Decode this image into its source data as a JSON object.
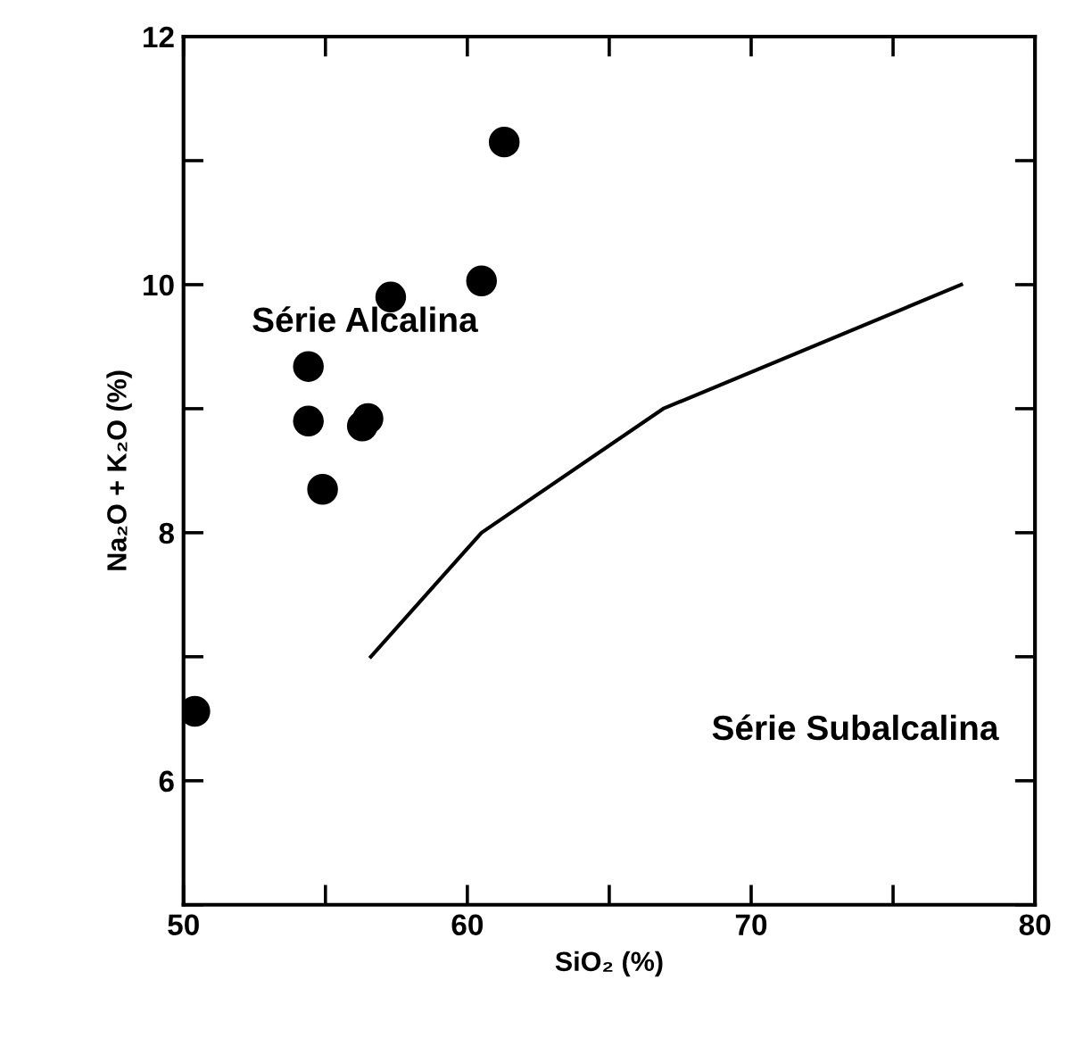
{
  "chart_data": {
    "type": "scatter",
    "xlabel": "SiO₂ (%)",
    "ylabel": "Na₂O + K₂O (%)",
    "xlim": [
      50,
      80
    ],
    "ylim": [
      5,
      12
    ],
    "xticks": [
      50,
      60,
      70,
      80
    ],
    "yticks": [
      6,
      8,
      10,
      12
    ],
    "grid": false,
    "annotations": [
      "Série Alcalina",
      "Série Subalcalina"
    ],
    "series": [
      {
        "marker": "circle",
        "color": "#000000",
        "x": [
          50.4,
          54.4,
          54.4,
          54.9,
          56.3,
          56.5,
          57.3,
          60.5,
          61.3
        ],
        "values": [
          6.56,
          8.9,
          9.34,
          8.35,
          8.86,
          8.92,
          9.9,
          10.03,
          11.15
        ]
      },
      {
        "type": "line",
        "color": "#000000",
        "line_style": "solid",
        "x": [
          56.6,
          60.5,
          66.9,
          77.4
        ],
        "values": [
          7.0,
          8.0,
          9.0,
          10.0
        ]
      }
    ]
  }
}
